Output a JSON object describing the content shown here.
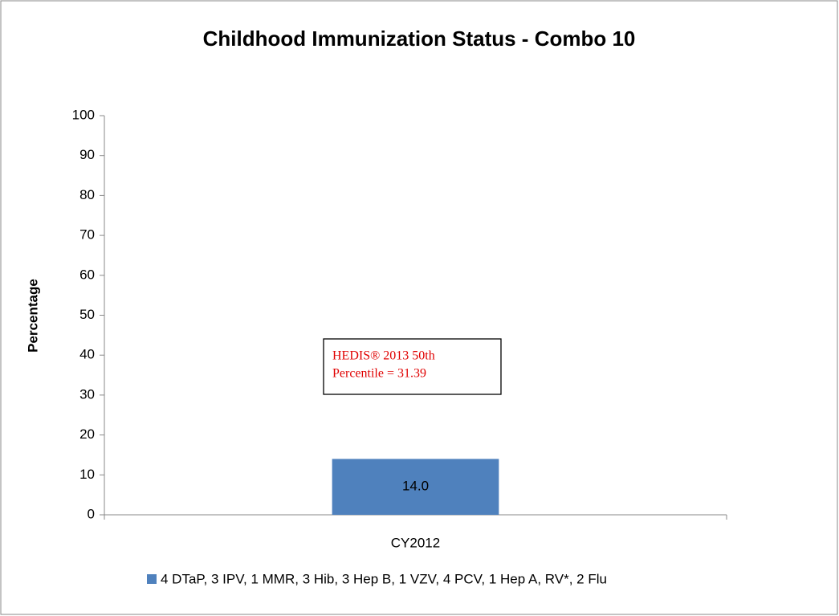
{
  "chart_data": {
    "type": "bar",
    "title": "Childhood Immunization Status - Combo 10",
    "y_label": "Percentage",
    "categories": [
      "CY2012"
    ],
    "series": [
      {
        "name": "4 DTaP, 3 IPV, 1 MMR, 3 Hib, 3 Hep B, 1 VZV, 4 PCV, 1 Hep A, RV*, 2 Flu",
        "color": "#4f81bd",
        "values": [
          14.0
        ],
        "value_labels": [
          "14.0"
        ]
      }
    ],
    "ylim": [
      0,
      100
    ],
    "yticks": [
      0,
      10,
      20,
      30,
      40,
      50,
      60,
      70,
      80,
      90,
      100
    ],
    "annotation": [
      "HEDIS® 2013 50th",
      "Percentile = 31.39"
    ],
    "grid": false,
    "legend": "bottom"
  }
}
